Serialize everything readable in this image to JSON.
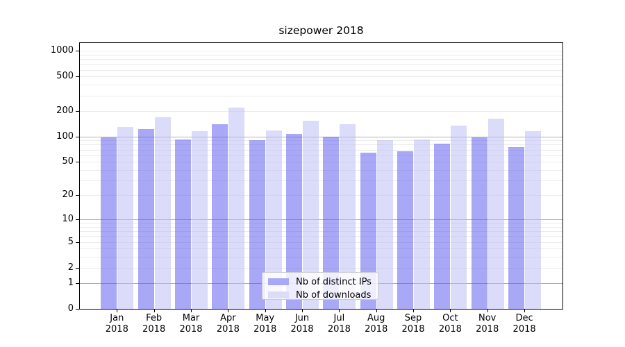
{
  "chart_data": {
    "type": "bar",
    "title": "sizepower 2018",
    "categories": [
      "Jan 2018",
      "Feb 2018",
      "Mar 2018",
      "Apr 2018",
      "May 2018",
      "Jun 2018",
      "Jul 2018",
      "Aug 2018",
      "Sep 2018",
      "Oct 2018",
      "Nov 2018",
      "Dec 2018"
    ],
    "series": [
      {
        "name": "Nb of distinct IPs",
        "fill": "rgba(82,82,240,0.5)",
        "swatch": "#a8a8f6",
        "values": [
          97,
          122,
          93,
          140,
          90,
          107,
          100,
          64,
          67,
          82,
          97,
          75
        ]
      },
      {
        "name": "Nb of downloads",
        "fill": "rgba(184,184,245,0.5)",
        "swatch": "#dbdbfa",
        "values": [
          128,
          168,
          115,
          216,
          118,
          152,
          138,
          90,
          92,
          135,
          162,
          115
        ]
      }
    ],
    "yscale": "log1p",
    "yticks": [
      0,
      1,
      2,
      5,
      10,
      20,
      50,
      100,
      200,
      500,
      1000
    ],
    "ylim": [
      0,
      1230
    ],
    "xlabel": "",
    "ylabel": "",
    "grid": true,
    "legend_position": "lower center",
    "colors": {
      "major_grid": "#b0b0b0",
      "minor_grid": "#ebebeb",
      "spine": "#000000"
    }
  }
}
